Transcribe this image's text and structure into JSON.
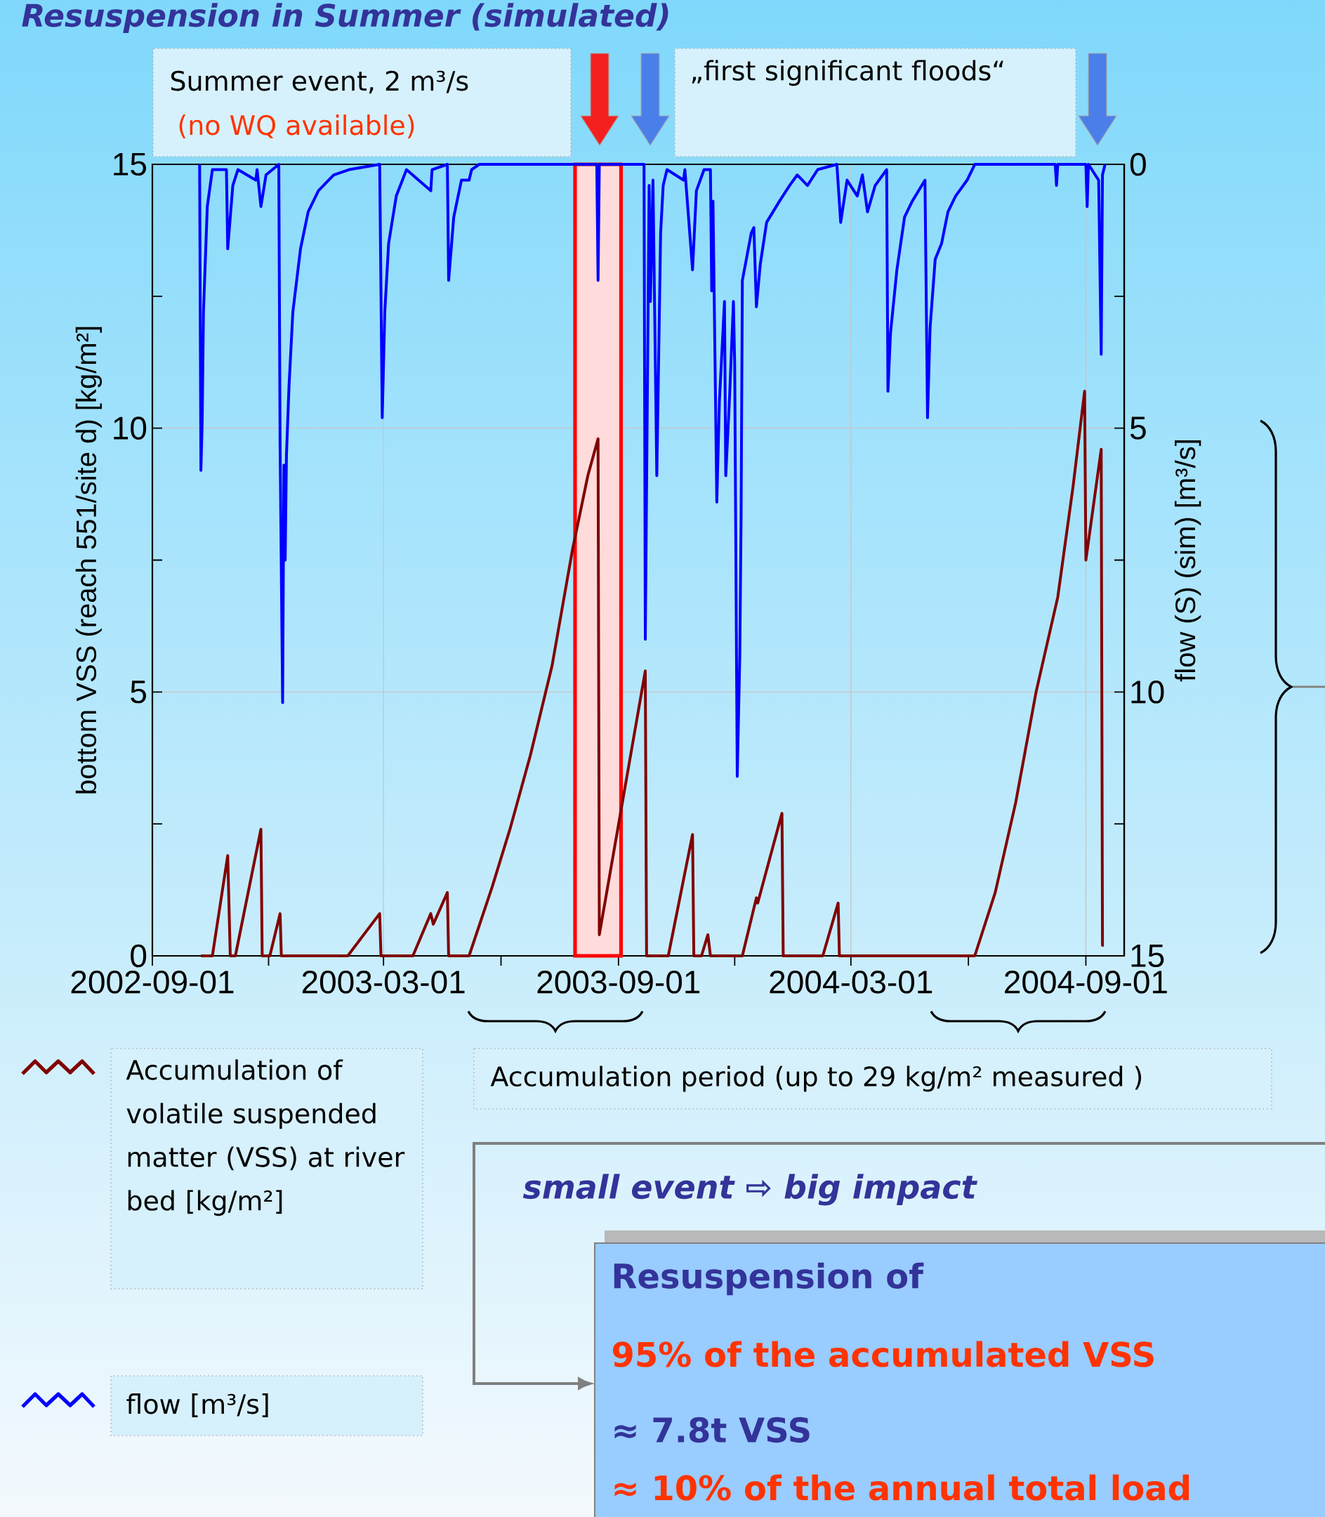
{
  "chart_data": {
    "type": "line",
    "title": "Resuspension in Summer (simulated)",
    "ylabel": "bottom VSS (reach 551/site d) [kg/m²]",
    "y2label": "flow (S) (sim) [m³/s]",
    "xlim": [
      "2002-09-01",
      "2004-10-01"
    ],
    "xticks": [
      "2002-09-01",
      {
        "value": "2002-12-01",
        "label": null
      },
      "2003-03-01",
      {
        "value": "2003-06-01",
        "label": null
      },
      "2003-09-01",
      {
        "value": "2003-12-01",
        "label": null
      },
      "2004-03-01",
      {
        "value": "2004-06-01",
        "label": null
      },
      "2004-09-01"
    ],
    "ylim": [
      0,
      15
    ],
    "yticks": [
      0,
      {
        "value": 2.5,
        "label": null
      },
      5,
      {
        "value": 7.5,
        "label": null
      },
      10,
      {
        "value": 12.5,
        "label": null
      },
      15
    ],
    "y2lim": [
      15,
      0
    ],
    "y2ticks": [
      0,
      {
        "value": 2.5,
        "label": null
      },
      5,
      {
        "value": 7.5,
        "label": null
      },
      10,
      {
        "value": 12.5,
        "label": null
      },
      15
    ],
    "grid": true,
    "legend": "bottom left",
    "bands": [
      {
        "axis": "x",
        "from": "2003-07-29",
        "to": "2003-09-03",
        "color": "#ff0000"
      }
    ],
    "annotations": [
      "Summer event, 2 m³/s",
      "(no WQ available)",
      "„first significant floods“",
      "Accumulation period (up to 29 kg/m² measured )",
      "small event ⇨ big impact",
      "Resuspension of",
      "95% of the accumulated VSS",
      "≈ 7.8t VSS",
      "≈ 10% of the annual total load"
    ],
    "series": [
      {
        "name": "Accumulation of volatile suspended matter (VSS) at river bed [kg/m²]",
        "color": "#800000",
        "x": [
          "2002-10-09",
          "2002-10-18",
          "2002-10-30",
          "2002-11-01",
          "2002-11-05",
          "2002-11-25",
          "2002-11-26",
          "2002-12-02",
          "2002-12-10",
          "2002-12-11",
          "2003-02-01",
          "2003-02-26",
          "2003-02-27",
          "2003-03-24",
          "2003-04-07",
          "2003-04-09",
          "2003-04-20",
          "2003-04-21",
          "2003-05-07",
          "2003-05-25",
          "2003-06-08",
          "2003-06-24",
          "2003-07-11",
          "2003-07-27",
          "2003-08-08",
          "2003-08-16",
          "2003-08-17",
          "2003-09-22",
          "2003-09-23",
          "2003-10-10",
          "2003-10-29",
          "2003-10-30",
          "2003-11-05",
          "2003-11-10",
          "2003-11-12",
          "2003-12-07",
          "2003-12-18",
          "2003-12-19",
          "2004-01-07",
          "2004-01-08",
          "2004-02-08",
          "2004-02-20",
          "2004-02-21",
          "2004-06-06",
          "2004-06-22",
          "2004-07-08",
          "2004-07-24",
          "2004-08-10",
          "2004-08-22",
          "2004-08-31",
          "2004-09-01",
          "2004-09-13",
          "2004-09-14",
          "2004-09-15"
        ],
        "values": [
          0,
          0,
          1.9,
          0,
          0,
          2.4,
          0,
          0,
          0.8,
          0,
          0,
          0.8,
          0,
          0,
          0.8,
          0.6,
          1.2,
          0,
          0,
          1.3,
          2.4,
          3.8,
          5.5,
          7.7,
          9.1,
          9.8,
          0.4,
          5.4,
          0,
          0,
          2.3,
          0,
          0,
          0.4,
          0,
          0,
          1.1,
          1.0,
          2.7,
          0,
          0,
          1.0,
          0,
          0,
          1.2,
          2.9,
          5.0,
          6.8,
          8.9,
          10.7,
          7.5,
          9.6,
          0.2,
          0.2
        ]
      },
      {
        "name": "flow [m³/s]",
        "color": "#0000ff",
        "axis": "y2",
        "x": [
          "2002-10-08",
          "2002-10-09",
          "2002-10-10",
          "2002-10-11",
          "2002-10-14",
          "2002-10-18",
          "2002-10-29",
          "2002-10-30",
          "2002-11-03",
          "2002-11-07",
          "2002-11-21",
          "2002-11-22",
          "2002-11-25",
          "2002-11-29",
          "2002-12-09",
          "2002-12-10",
          "2002-12-12",
          "2002-12-13",
          "2002-12-14",
          "2002-12-15",
          "2002-12-17",
          "2002-12-20",
          "2002-12-26",
          "2003-01-01",
          "2003-01-09",
          "2003-01-21",
          "2003-02-02",
          "2003-02-26",
          "2003-02-28",
          "2003-03-02",
          "2003-03-05",
          "2003-03-11",
          "2003-03-19",
          "2003-04-07",
          "2003-04-08",
          "2003-04-20",
          "2003-04-21",
          "2003-04-25",
          "2003-05-01",
          "2003-05-07",
          "2003-05-09",
          "2003-05-15",
          "2003-08-15",
          "2003-08-16",
          "2003-08-17",
          "2003-09-21",
          "2003-09-22",
          "2003-09-25",
          "2003-09-26",
          "2003-09-28",
          "2003-10-01",
          "2003-10-04",
          "2003-10-06",
          "2003-10-09",
          "2003-10-22",
          "2003-10-23",
          "2003-10-29",
          "2003-11-01",
          "2003-11-07",
          "2003-11-12",
          "2003-11-13",
          "2003-11-14",
          "2003-11-17",
          "2003-11-19",
          "2003-11-23",
          "2003-11-24",
          "2003-11-27",
          "2003-11-30",
          "2003-12-01",
          "2003-12-03",
          "2003-12-05",
          "2003-12-06",
          "2003-12-07",
          "2003-12-14",
          "2003-12-16",
          "2003-12-18",
          "2003-12-21",
          "2003-12-26",
          "2004-01-05",
          "2004-01-13",
          "2004-01-19",
          "2004-01-27",
          "2004-02-04",
          "2004-02-19",
          "2004-02-22",
          "2004-02-27",
          "2004-03-06",
          "2004-03-10",
          "2004-03-14",
          "2004-03-20",
          "2004-03-29",
          "2004-03-30",
          "2004-04-01",
          "2004-04-06",
          "2004-04-12",
          "2004-04-18",
          "2004-04-28",
          "2004-04-30",
          "2004-05-02",
          "2004-05-06",
          "2004-05-11",
          "2004-05-16",
          "2004-05-22",
          "2004-05-31",
          "2004-06-06",
          "2004-08-08",
          "2004-08-09",
          "2004-08-10",
          "2004-09-01",
          "2004-09-02",
          "2004-09-03",
          "2004-09-11",
          "2004-09-13",
          "2004-09-14",
          "2004-09-16"
        ],
        "values": [
          0,
          5.8,
          4.9,
          2.8,
          0.8,
          0.1,
          0.1,
          1.6,
          0.4,
          0.1,
          0.3,
          0.1,
          0.8,
          0.2,
          0,
          5.3,
          10.2,
          5.7,
          7.5,
          5.5,
          4.2,
          2.8,
          1.6,
          0.9,
          0.5,
          0.2,
          0.1,
          0,
          4.8,
          2.8,
          1.5,
          0.6,
          0.1,
          0.5,
          0.1,
          0,
          2.2,
          1.0,
          0.3,
          0.3,
          0.1,
          0,
          0,
          2.2,
          0,
          0,
          9.0,
          0.4,
          2.6,
          0.3,
          5.9,
          1.3,
          0.4,
          0.1,
          0.3,
          0.1,
          2.0,
          0.5,
          0.1,
          0.1,
          2.4,
          0.7,
          6.4,
          4.5,
          2.6,
          5.9,
          4.4,
          2.6,
          3.8,
          11.6,
          9.3,
          6.7,
          2.2,
          1.3,
          1.2,
          2.7,
          1.9,
          1.1,
          0.7,
          0.4,
          0.2,
          0.4,
          0.1,
          0,
          1.1,
          0.3,
          0.6,
          0.2,
          0.9,
          0.4,
          0.1,
          4.3,
          3.2,
          2.0,
          1.0,
          0.7,
          0.3,
          4.8,
          3.1,
          1.8,
          1.5,
          0.9,
          0.6,
          0.3,
          0,
          0,
          0.4,
          0,
          0,
          0.8,
          0,
          0.3,
          3.6,
          0.2,
          0
        ]
      }
    ]
  }
}
